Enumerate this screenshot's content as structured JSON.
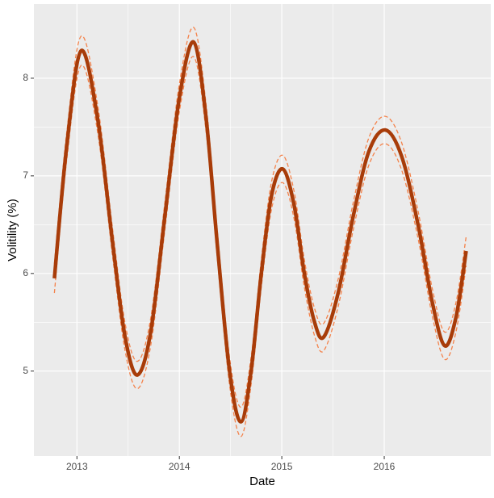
{
  "chart_data": {
    "type": "line",
    "x_label": "Date",
    "y_label": "Volitility (%)",
    "x": [
      2012.78,
      2012.9,
      2013.04,
      2013.2,
      2013.35,
      2013.47,
      2013.59,
      2013.72,
      2013.86,
      2014.0,
      2014.14,
      2014.26,
      2014.37,
      2014.49,
      2014.6,
      2014.7,
      2014.8,
      2014.9,
      2015.01,
      2015.12,
      2015.22,
      2015.32,
      2015.41,
      2015.55,
      2015.7,
      2015.85,
      2016.01,
      2016.17,
      2016.33,
      2016.47,
      2016.59,
      2016.7,
      2016.8
    ],
    "series": [
      {
        "color": "#f4824a",
        "dashed": true,
        "width": 1.3,
        "values": [
          6.1,
          7.44,
          8.43,
          7.74,
          6.44,
          5.49,
          5.1,
          5.54,
          6.74,
          7.94,
          8.52,
          7.74,
          6.44,
          5.14,
          4.63,
          5.14,
          6.14,
          6.94,
          7.21,
          6.84,
          6.14,
          5.64,
          5.49,
          5.94,
          6.74,
          7.39,
          7.61,
          7.34,
          6.64,
          5.84,
          5.4,
          5.7,
          6.38
        ]
      },
      {
        "color": "#f4824a",
        "dashed": true,
        "width": 1.3,
        "values": [
          5.8,
          7.16,
          8.13,
          7.46,
          6.16,
          5.21,
          4.82,
          5.26,
          6.46,
          7.66,
          8.22,
          7.46,
          6.16,
          4.86,
          4.33,
          4.86,
          5.86,
          6.66,
          6.93,
          6.56,
          5.86,
          5.36,
          5.21,
          5.66,
          6.46,
          7.11,
          7.33,
          7.06,
          6.36,
          5.56,
          5.12,
          5.4,
          6.08
        ]
      },
      {
        "color": "#a83c09",
        "dashed": false,
        "width": 4.5,
        "values": [
          5.95,
          7.3,
          8.28,
          7.6,
          6.3,
          5.35,
          4.96,
          5.4,
          6.6,
          7.8,
          8.37,
          7.6,
          6.3,
          5.0,
          4.48,
          5.0,
          6.0,
          6.8,
          7.07,
          6.7,
          6.0,
          5.5,
          5.35,
          5.8,
          6.6,
          7.25,
          7.47,
          7.2,
          6.5,
          5.7,
          5.26,
          5.55,
          6.23
        ]
      }
    ],
    "xlim": [
      2012.58,
      2017.04
    ],
    "xticks": [
      2013,
      2014,
      2015,
      2016
    ],
    "ylim": [
      4.13,
      8.76
    ],
    "yticks": [
      5,
      6,
      7,
      8
    ],
    "grid": true
  }
}
